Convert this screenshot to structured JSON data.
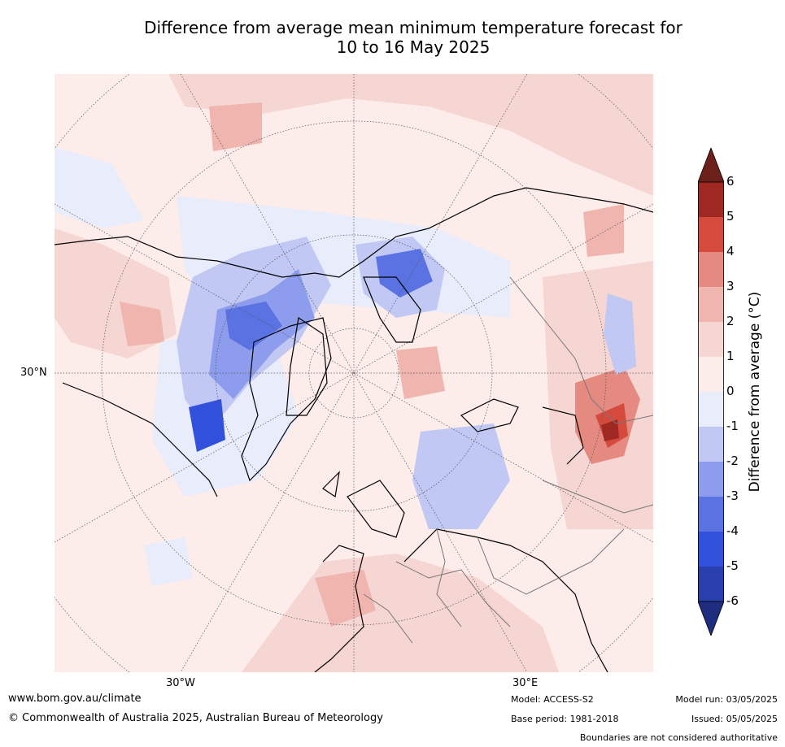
{
  "title_line1": "Difference from average mean minimum temperature forecast for",
  "title_line2": "10 to 16 May 2025",
  "map": {
    "lon_labels": [
      "30°W",
      "30°E"
    ],
    "lat_label": "30°N"
  },
  "colorbar": {
    "title": "Difference from average (°C)",
    "ticks": [
      "6",
      "5",
      "4",
      "3",
      "2",
      "1",
      "0",
      "-1",
      "-2",
      "-3",
      "-4",
      "-5",
      "-6"
    ],
    "colors": [
      "#6d1f1a",
      "#a02822",
      "#d44a3c",
      "#e58a80",
      "#efb5ae",
      "#f6d6d3",
      "#fcecea",
      "#e9ecfb",
      "#c0c8f3",
      "#8d9cec",
      "#5a72e2",
      "#3150dc",
      "#2a3fae",
      "#1f2d80"
    ]
  },
  "footer": {
    "site": "www.bom.gov.au/climate",
    "copyright": "© Commonwealth of Australia 2025, Australian Bureau of Meteorology",
    "model": "Model: ACCESS-S2",
    "base_period": "Base period: 1981-2018",
    "model_run": "Model run: 03/05/2025",
    "issued": "Issued: 05/05/2025",
    "disclaimer": "Boundaries are not considered authoritative"
  }
}
